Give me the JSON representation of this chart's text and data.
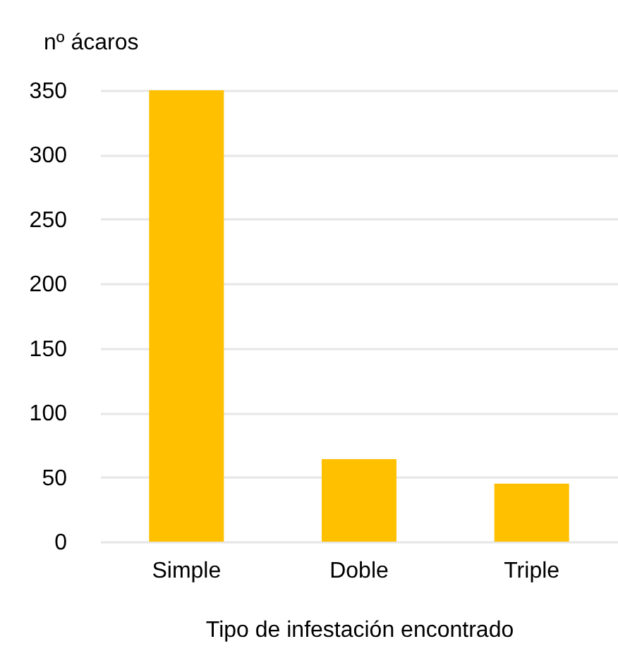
{
  "chart_data": {
    "type": "bar",
    "ylabel": "nº ácaros",
    "xlabel": "Tipo de infestación encontrado",
    "categories": [
      "Simple",
      "Doble",
      "Triple"
    ],
    "values": [
      350,
      64,
      45
    ],
    "color": "#ffc000",
    "ylim": [
      0,
      350
    ],
    "yticks": [
      0,
      50,
      100,
      150,
      200,
      250,
      300,
      350
    ],
    "grid": "y"
  }
}
